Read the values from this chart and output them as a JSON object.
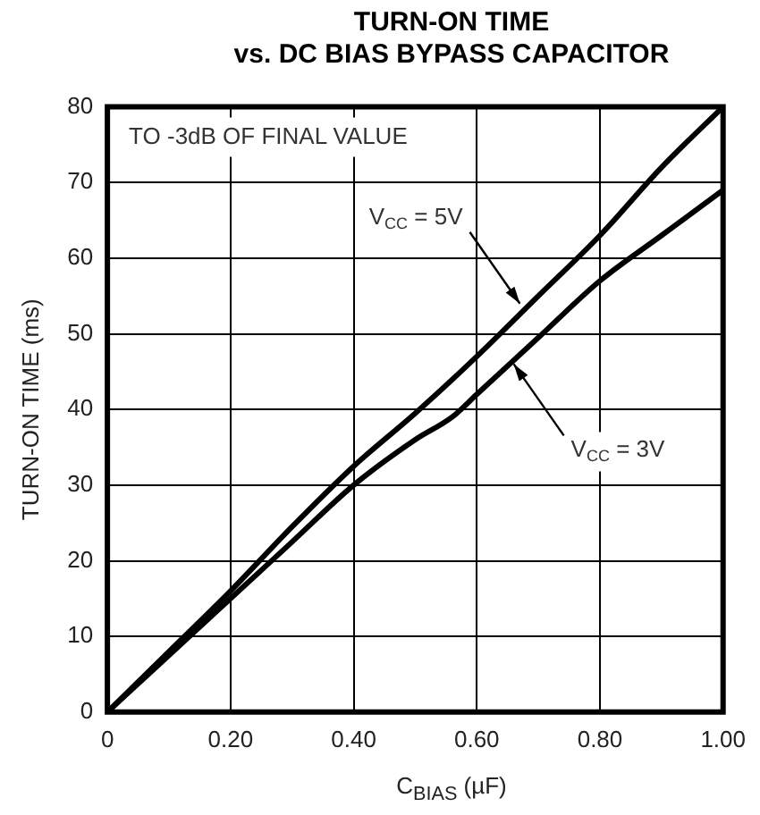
{
  "chart_data": {
    "type": "line",
    "title": "TURN-ON TIME\nvs. DC BIAS BYPASS CAPACITOR",
    "xlabel": "C$_{BIAS}$ (µF)",
    "ylabel": "TURN-ON TIME (ms)",
    "series": [
      {
        "color": "#000000",
        "x": [
          0,
          0.1,
          0.2,
          0.3,
          0.4,
          0.5,
          0.6,
          0.7,
          0.8,
          0.9,
          1.0
        ],
        "values": [
          0,
          8,
          16,
          24.5,
          32.5,
          39.5,
          47,
          55,
          63,
          72,
          80
        ]
      },
      {
        "color": "#000000",
        "x": [
          0,
          0.1,
          0.2,
          0.3,
          0.4,
          0.5,
          0.56,
          0.6,
          0.7,
          0.8,
          0.9,
          1.0
        ],
        "values": [
          0,
          7.5,
          15,
          22.5,
          30,
          36,
          39,
          42,
          49.5,
          57,
          63,
          69
        ]
      }
    ],
    "xlim": [
      0,
      1
    ],
    "xticks": [
      0,
      {
        "value": 0.2,
        "label": "0.20"
      },
      {
        "value": 0.4,
        "label": "0.40"
      },
      {
        "value": 0.6,
        "label": "0.60"
      },
      {
        "value": 0.8,
        "label": "0.80"
      },
      {
        "value": 1,
        "label": "1.00"
      }
    ],
    "ylim": [
      0,
      80
    ],
    "yticks": [
      0,
      10,
      20,
      30,
      40,
      50,
      60,
      70,
      80
    ],
    "grid": true,
    "legend": false,
    "marker": "none",
    "line_style": "solid",
    "annotations": [
      "TO -3dB OF FINAL VALUE",
      {
        "text": "V$_{CC}$ = 5V",
        "x": 0.67,
        "y": 54
      },
      {
        "text": "V$_{CC}$ = 3V",
        "x": 0.66,
        "y": 46
      }
    ]
  }
}
